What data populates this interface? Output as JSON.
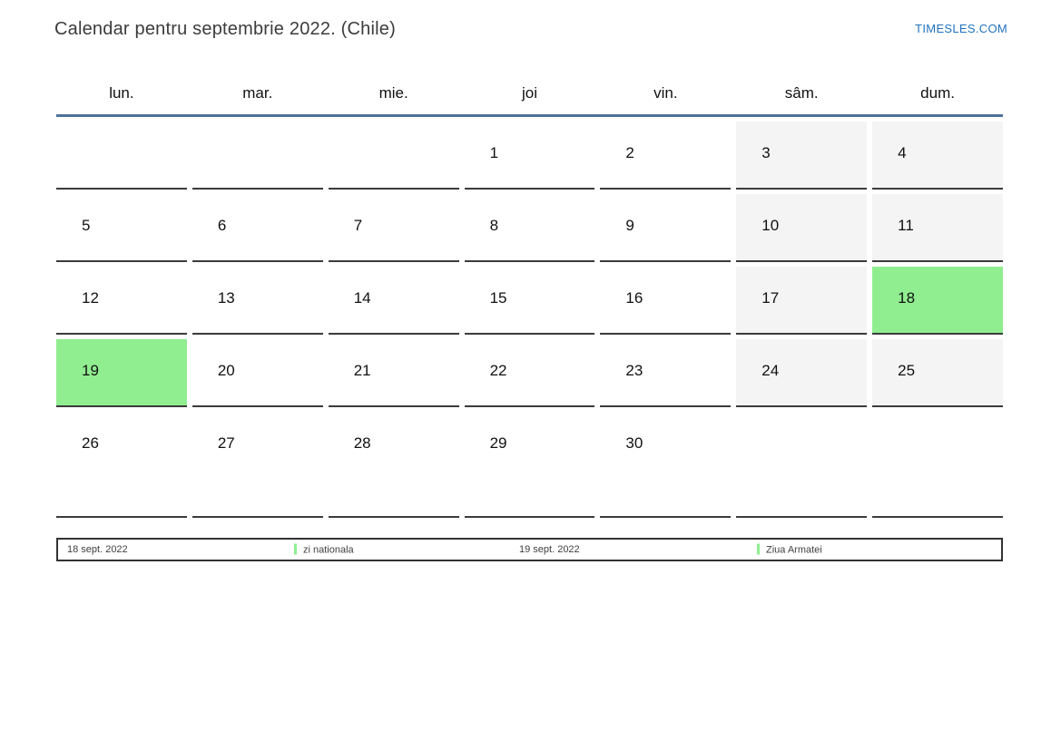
{
  "page": {
    "title": "Calendar pentru septembrie 2022. (Chile)",
    "site_link": "TIMESLES.COM"
  },
  "colors": {
    "accent_blue": "#2272bd",
    "header_rule_blue": "#4f7199",
    "weekend_bg": "#f4f4f4",
    "holiday_green": "#90ee90",
    "cell_border": "#3b3b3b"
  },
  "calendar": {
    "weekdays": [
      "lun.",
      "mar.",
      "mie.",
      "joi",
      "vin.",
      "sâm.",
      "dum."
    ],
    "weeks": [
      [
        {
          "day": "",
          "type": "blank"
        },
        {
          "day": "",
          "type": "blank"
        },
        {
          "day": "",
          "type": "blank"
        },
        {
          "day": "1",
          "type": "weekday"
        },
        {
          "day": "2",
          "type": "weekday"
        },
        {
          "day": "3",
          "type": "weekend"
        },
        {
          "day": "4",
          "type": "weekend"
        }
      ],
      [
        {
          "day": "5",
          "type": "weekday"
        },
        {
          "day": "6",
          "type": "weekday"
        },
        {
          "day": "7",
          "type": "weekday"
        },
        {
          "day": "8",
          "type": "weekday"
        },
        {
          "day": "9",
          "type": "weekday"
        },
        {
          "day": "10",
          "type": "weekend"
        },
        {
          "day": "11",
          "type": "weekend"
        }
      ],
      [
        {
          "day": "12",
          "type": "weekday"
        },
        {
          "day": "13",
          "type": "weekday"
        },
        {
          "day": "14",
          "type": "weekday"
        },
        {
          "day": "15",
          "type": "weekday"
        },
        {
          "day": "16",
          "type": "weekday"
        },
        {
          "day": "17",
          "type": "weekend"
        },
        {
          "day": "18",
          "type": "holiday"
        }
      ],
      [
        {
          "day": "19",
          "type": "holiday"
        },
        {
          "day": "20",
          "type": "weekday"
        },
        {
          "day": "21",
          "type": "weekday"
        },
        {
          "day": "22",
          "type": "weekday"
        },
        {
          "day": "23",
          "type": "weekday"
        },
        {
          "day": "24",
          "type": "weekend"
        },
        {
          "day": "25",
          "type": "weekend"
        }
      ],
      [
        {
          "day": "26",
          "type": "weekday"
        },
        {
          "day": "27",
          "type": "weekday"
        },
        {
          "day": "28",
          "type": "weekday"
        },
        {
          "day": "29",
          "type": "weekday"
        },
        {
          "day": "30",
          "type": "weekday"
        },
        {
          "day": "",
          "type": "blank"
        },
        {
          "day": "",
          "type": "blank"
        }
      ]
    ]
  },
  "legend": {
    "items": [
      {
        "date": "18 sept. 2022",
        "label": "zi nationala"
      },
      {
        "date": "19 sept. 2022",
        "label": "Ziua Armatei"
      }
    ]
  }
}
